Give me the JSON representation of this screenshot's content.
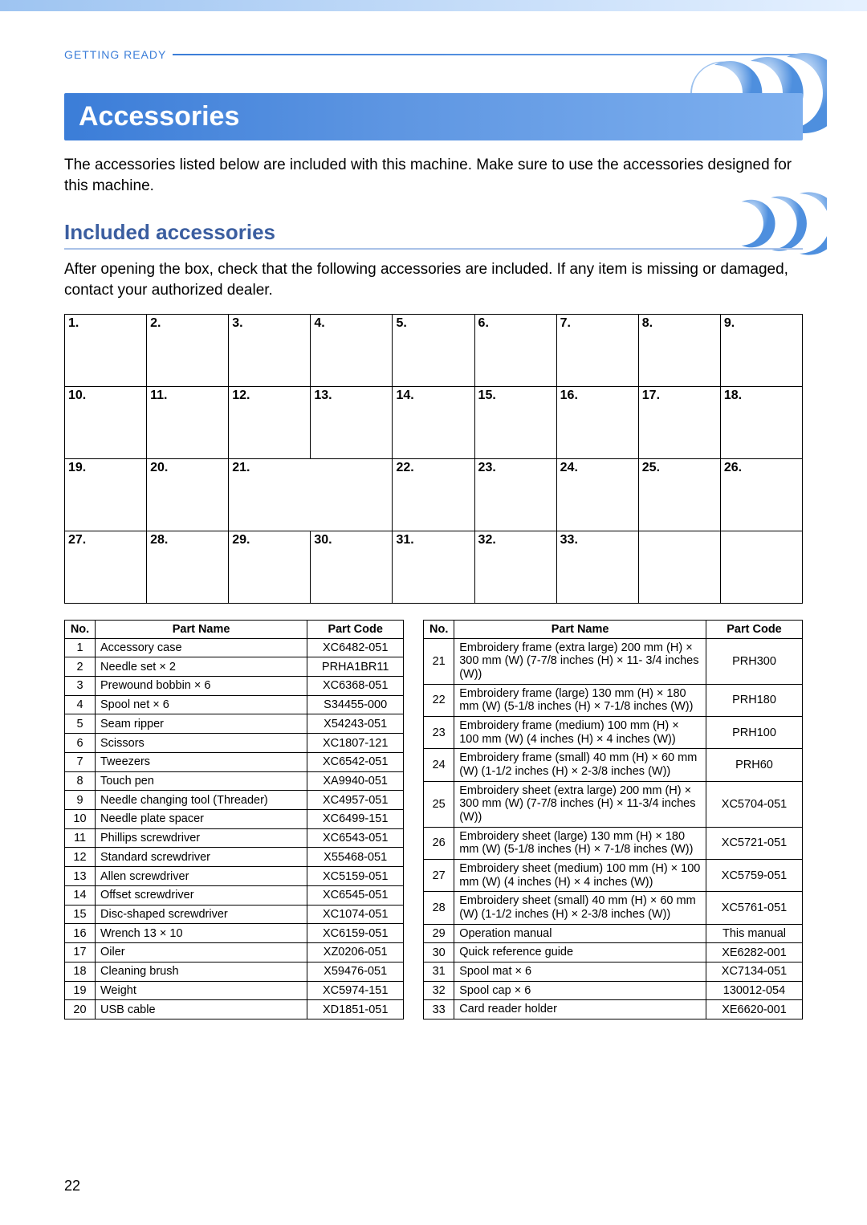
{
  "header": {
    "chapter": "GETTING READY"
  },
  "section": {
    "title": "Accessories",
    "intro": "The accessories listed below are included with this machine. Make sure to use the accessories designed for this machine."
  },
  "subsection": {
    "title": "Included accessories",
    "intro": "After opening the box, check that the following accessories are included. If any item is missing or damaged, contact your authorized dealer."
  },
  "colors": {
    "accent": "#3b7dd8",
    "accent_light": "#7eb0ef",
    "subhead": "#3b5ea0"
  },
  "imageGrid": {
    "cols": 9,
    "cells": [
      {
        "n": "1.",
        "span": 1
      },
      {
        "n": "2.",
        "span": 1
      },
      {
        "n": "3.",
        "span": 1
      },
      {
        "n": "4.",
        "span": 1
      },
      {
        "n": "5.",
        "span": 1
      },
      {
        "n": "6.",
        "span": 1
      },
      {
        "n": "7.",
        "span": 1
      },
      {
        "n": "8.",
        "span": 1
      },
      {
        "n": "9.",
        "span": 1
      },
      {
        "n": "10.",
        "span": 1
      },
      {
        "n": "11.",
        "span": 1
      },
      {
        "n": "12.",
        "span": 1
      },
      {
        "n": "13.",
        "span": 1
      },
      {
        "n": "14.",
        "span": 1
      },
      {
        "n": "15.",
        "span": 1
      },
      {
        "n": "16.",
        "span": 1
      },
      {
        "n": "17.",
        "span": 1
      },
      {
        "n": "18.",
        "span": 1
      },
      {
        "n": "19.",
        "span": 1
      },
      {
        "n": "20.",
        "span": 1
      },
      {
        "n": "21.",
        "span": 2
      },
      {
        "n": "22.",
        "span": 1
      },
      {
        "n": "23.",
        "span": 1
      },
      {
        "n": "24.",
        "span": 1
      },
      {
        "n": "25.",
        "span": 1
      },
      {
        "n": "26.",
        "span": 1
      },
      {
        "n": "27.",
        "span": 1
      },
      {
        "n": "28.",
        "span": 1
      },
      {
        "n": "29.",
        "span": 1
      },
      {
        "n": "30.",
        "span": 1
      },
      {
        "n": "31.",
        "span": 1
      },
      {
        "n": "32.",
        "span": 1
      },
      {
        "n": "33.",
        "span": 1
      },
      {
        "n": "",
        "span": 1
      },
      {
        "n": "",
        "span": 1
      }
    ]
  },
  "leftTable": {
    "headers": {
      "no": "No.",
      "name": "Part Name",
      "code": "Part Code"
    },
    "rows": [
      {
        "no": "1",
        "name": "Accessory case",
        "code": "XC6482-051"
      },
      {
        "no": "2",
        "name": "Needle set × 2",
        "code": "PRHA1BR11"
      },
      {
        "no": "3",
        "name": "Prewound bobbin × 6",
        "code": "XC6368-051"
      },
      {
        "no": "4",
        "name": "Spool net × 6",
        "code": "S34455-000"
      },
      {
        "no": "5",
        "name": "Seam ripper",
        "code": "X54243-051"
      },
      {
        "no": "6",
        "name": "Scissors",
        "code": "XC1807-121"
      },
      {
        "no": "7",
        "name": "Tweezers",
        "code": "XC6542-051"
      },
      {
        "no": "8",
        "name": "Touch pen",
        "code": "XA9940-051"
      },
      {
        "no": "9",
        "name": "Needle changing tool (Threader)",
        "code": "XC4957-051"
      },
      {
        "no": "10",
        "name": "Needle plate spacer",
        "code": "XC6499-151"
      },
      {
        "no": "11",
        "name": "Phillips screwdriver",
        "code": "XC6543-051"
      },
      {
        "no": "12",
        "name": "Standard screwdriver",
        "code": "X55468-051"
      },
      {
        "no": "13",
        "name": "Allen screwdriver",
        "code": "XC5159-051"
      },
      {
        "no": "14",
        "name": "Offset screwdriver",
        "code": "XC6545-051"
      },
      {
        "no": "15",
        "name": "Disc-shaped screwdriver",
        "code": "XC1074-051"
      },
      {
        "no": "16",
        "name": "Wrench 13 × 10",
        "code": "XC6159-051"
      },
      {
        "no": "17",
        "name": "Oiler",
        "code": "XZ0206-051"
      },
      {
        "no": "18",
        "name": "Cleaning brush",
        "code": "X59476-051"
      },
      {
        "no": "19",
        "name": "Weight",
        "code": "XC5974-151"
      },
      {
        "no": "20",
        "name": "USB cable",
        "code": "XD1851-051"
      }
    ]
  },
  "rightTable": {
    "headers": {
      "no": "No.",
      "name": "Part Name",
      "code": "Part Code"
    },
    "rows": [
      {
        "no": "21",
        "name": "Embroidery frame (extra large) 200 mm (H) × 300 mm (W) (7-7/8 inches (H) × 11- 3/4 inches (W))",
        "code": "PRH300"
      },
      {
        "no": "22",
        "name": "Embroidery frame (large) 130 mm (H) × 180 mm (W) (5-1/8 inches (H) × 7-1/8 inches (W))",
        "code": "PRH180"
      },
      {
        "no": "23",
        "name": "Embroidery frame (medium) 100 mm (H) × 100 mm (W) (4 inches (H) × 4 inches (W))",
        "code": "PRH100"
      },
      {
        "no": "24",
        "name": "Embroidery frame (small) 40 mm (H) × 60 mm (W) (1-1/2 inches (H) × 2-3/8 inches (W))",
        "code": "PRH60"
      },
      {
        "no": "25",
        "name": "Embroidery sheet (extra large) 200 mm (H) × 300 mm (W) (7-7/8 inches (H) × 11-3/4 inches (W))",
        "code": "XC5704-051"
      },
      {
        "no": "26",
        "name": "Embroidery sheet (large) 130 mm (H) × 180 mm (W) (5-1/8 inches (H) × 7-1/8 inches (W))",
        "code": "XC5721-051"
      },
      {
        "no": "27",
        "name": "Embroidery sheet (medium) 100 mm (H) × 100 mm (W) (4 inches (H) × 4 inches (W))",
        "code": "XC5759-051"
      },
      {
        "no": "28",
        "name": "Embroidery sheet (small) 40 mm (H) × 60 mm (W) (1-1/2 inches (H) × 2-3/8 inches (W))",
        "code": "XC5761-051"
      },
      {
        "no": "29",
        "name": "Operation manual",
        "code": "This manual"
      },
      {
        "no": "30",
        "name": "Quick reference guide",
        "code": "XE6282-001"
      },
      {
        "no": "31",
        "name": "Spool mat × 6",
        "code": "XC7134-051"
      },
      {
        "no": "32",
        "name": "Spool cap × 6",
        "code": "130012-054"
      },
      {
        "no": "33",
        "name": "Card reader holder",
        "code": "XE6620-001"
      }
    ]
  },
  "pageNumber": "22"
}
